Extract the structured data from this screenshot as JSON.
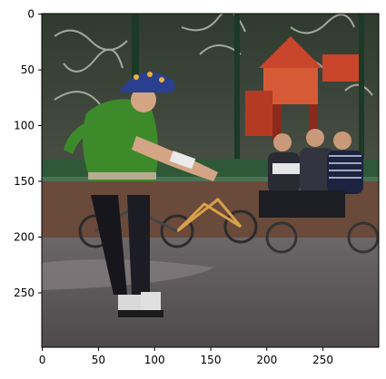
{
  "axes": {
    "x_ticks": [
      "0",
      "50",
      "100",
      "150",
      "200",
      "250"
    ],
    "y_ticks": [
      "0",
      "50",
      "100",
      "150",
      "200",
      "250"
    ]
  },
  "photo": {
    "subject": "skateboarder-on-inline-skates",
    "helmet_color": "#2a3f8f",
    "shirt_color": "#3d8a2a",
    "fence_color": "#1f4a30",
    "playground_color": "#c8442a",
    "ground_color": "#5a5658"
  }
}
